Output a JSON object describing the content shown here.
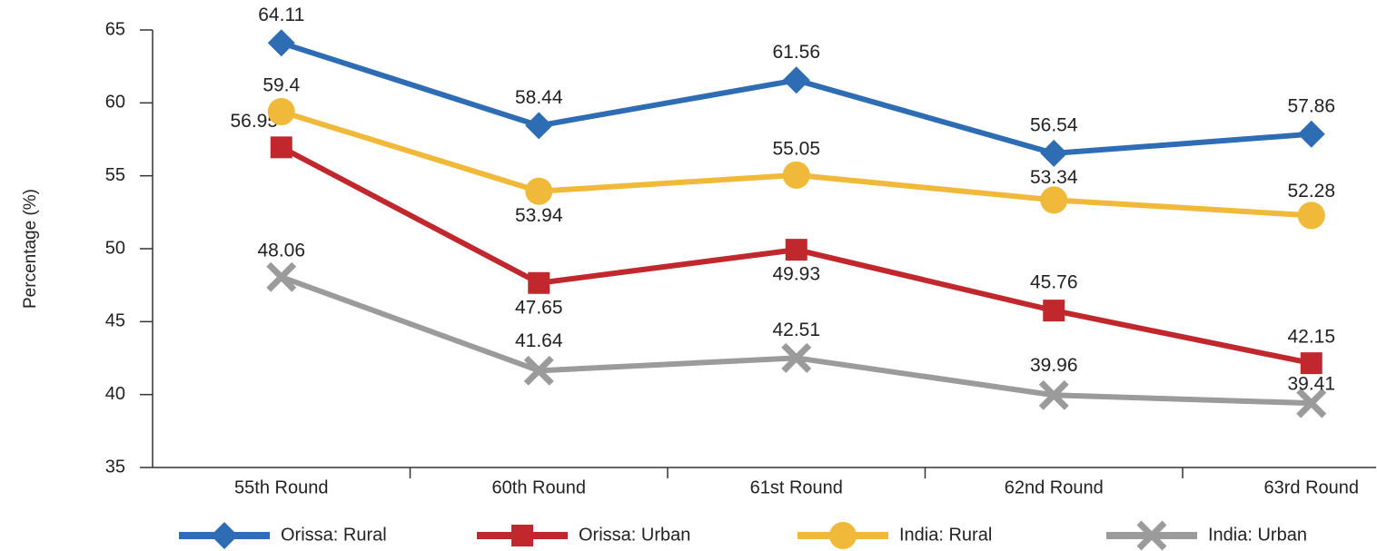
{
  "chart_data": {
    "type": "line",
    "y_label": "Percentage (%)",
    "categories": [
      "55th Round",
      "60th Round",
      "61st Round",
      "62nd Round",
      "63rd Round"
    ],
    "ylim": [
      35,
      65
    ],
    "yticks": [
      35,
      40,
      45,
      50,
      55,
      60,
      65
    ],
    "legend": "bottom",
    "series": [
      {
        "name": "Orissa: Rural",
        "color": "#2e6db4",
        "marker": "diamond",
        "values": [
          64.11,
          58.44,
          61.56,
          56.54,
          57.86
        ]
      },
      {
        "name": "Orissa: Urban",
        "color": "#c0282d",
        "marker": "square",
        "values": [
          56.95,
          47.65,
          49.93,
          45.76,
          42.15
        ]
      },
      {
        "name": "India: Rural",
        "color": "#f0b93a",
        "marker": "circle",
        "values": [
          59.4,
          53.94,
          55.05,
          53.34,
          52.28
        ]
      },
      {
        "name": "India: Urban",
        "color": "#9b9b9b",
        "marker": "x",
        "values": [
          48.06,
          41.64,
          42.51,
          39.96,
          39.41
        ]
      }
    ]
  }
}
